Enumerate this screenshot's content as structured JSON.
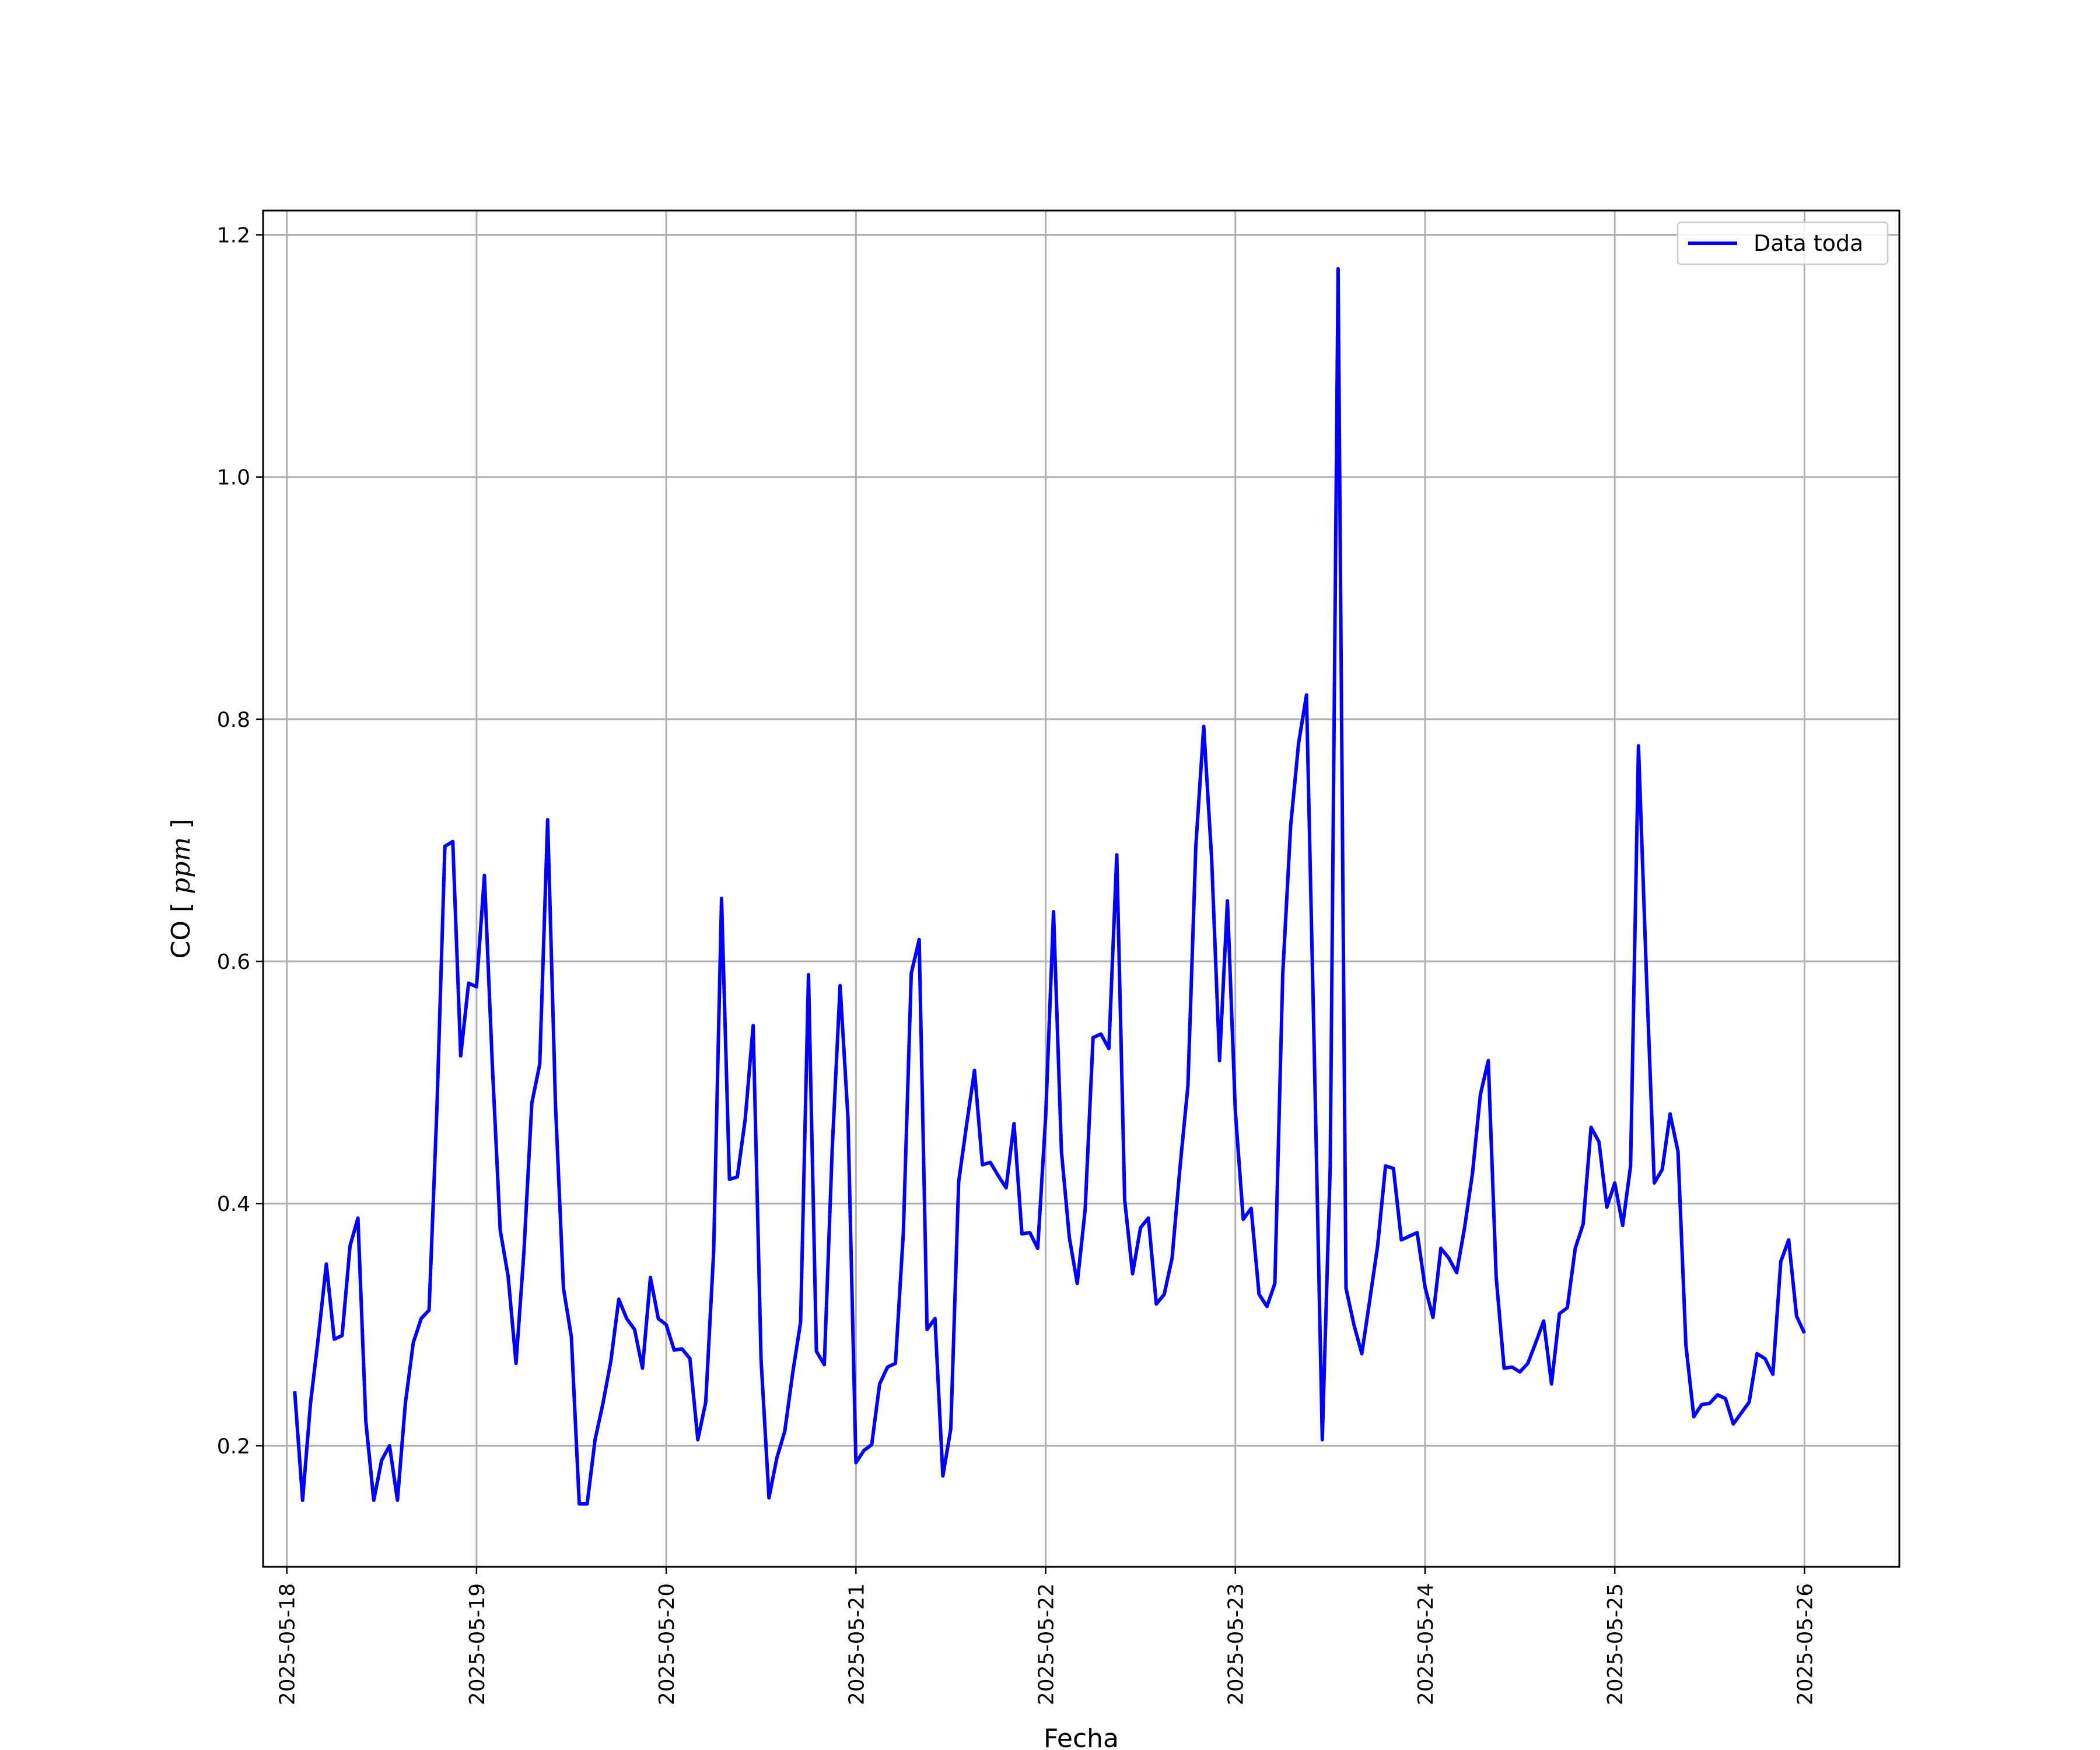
{
  "chart_data": {
    "type": "line",
    "title": "",
    "xlabel": "Fecha",
    "ylabel": "CO",
    "ylabel_unit": "ppm",
    "x_type": "date",
    "xlim": [
      "2025-05-17T21:00",
      "2025-05-26T12:00"
    ],
    "ylim": [
      0.1,
      1.22
    ],
    "xticks": [
      "2025-05-18",
      "2025-05-19",
      "2025-05-20",
      "2025-05-21",
      "2025-05-22",
      "2025-05-23",
      "2025-05-24",
      "2025-05-25",
      "2025-05-26"
    ],
    "yticks": [
      "0.2",
      "0.4",
      "0.6",
      "0.8",
      "1.0",
      "1.2"
    ],
    "grid": true,
    "legend": {
      "position": "top-right",
      "entries": [
        "Data toda"
      ]
    },
    "series": [
      {
        "name": "Data toda",
        "color": "#0000ff",
        "x": [
          "2025-05-18T01:00",
          "2025-05-18T02:00",
          "2025-05-18T03:00",
          "2025-05-18T04:00",
          "2025-05-18T05:00",
          "2025-05-18T06:00",
          "2025-05-18T07:00",
          "2025-05-18T08:00",
          "2025-05-18T09:00",
          "2025-05-18T10:00",
          "2025-05-18T11:00",
          "2025-05-18T12:00",
          "2025-05-18T13:00",
          "2025-05-18T14:00",
          "2025-05-18T15:00",
          "2025-05-18T16:00",
          "2025-05-18T17:00",
          "2025-05-18T18:00",
          "2025-05-18T19:00",
          "2025-05-18T20:00",
          "2025-05-18T21:00",
          "2025-05-18T22:00",
          "2025-05-18T23:00",
          "2025-05-19T00:00",
          "2025-05-19T01:00",
          "2025-05-19T02:00",
          "2025-05-19T03:00",
          "2025-05-19T04:00",
          "2025-05-19T05:00",
          "2025-05-19T06:00",
          "2025-05-19T07:00",
          "2025-05-19T08:00",
          "2025-05-19T09:00",
          "2025-05-19T10:00",
          "2025-05-19T11:00",
          "2025-05-19T12:00",
          "2025-05-19T13:00",
          "2025-05-19T14:00",
          "2025-05-19T15:00",
          "2025-05-19T16:00",
          "2025-05-19T17:00",
          "2025-05-19T18:00",
          "2025-05-19T19:00",
          "2025-05-19T20:00",
          "2025-05-19T21:00",
          "2025-05-19T22:00",
          "2025-05-19T23:00",
          "2025-05-20T00:00",
          "2025-05-20T01:00",
          "2025-05-20T02:00",
          "2025-05-20T03:00",
          "2025-05-20T04:00",
          "2025-05-20T05:00",
          "2025-05-20T06:00",
          "2025-05-20T07:00",
          "2025-05-20T08:00",
          "2025-05-20T09:00",
          "2025-05-20T10:00",
          "2025-05-20T11:00",
          "2025-05-20T12:00",
          "2025-05-20T13:00",
          "2025-05-20T14:00",
          "2025-05-20T15:00",
          "2025-05-20T16:00",
          "2025-05-20T17:00",
          "2025-05-20T18:00",
          "2025-05-20T19:00",
          "2025-05-20T20:00",
          "2025-05-20T21:00",
          "2025-05-20T22:00",
          "2025-05-20T23:00",
          "2025-05-21T00:00",
          "2025-05-21T01:00",
          "2025-05-21T02:00",
          "2025-05-21T03:00",
          "2025-05-21T04:00",
          "2025-05-21T05:00",
          "2025-05-21T06:00",
          "2025-05-21T07:00",
          "2025-05-21T08:00",
          "2025-05-21T09:00",
          "2025-05-21T10:00",
          "2025-05-21T11:00",
          "2025-05-21T12:00",
          "2025-05-21T13:00",
          "2025-05-21T14:00",
          "2025-05-21T15:00",
          "2025-05-21T16:00",
          "2025-05-21T17:00",
          "2025-05-21T18:00",
          "2025-05-21T19:00",
          "2025-05-21T20:00",
          "2025-05-21T21:00",
          "2025-05-21T22:00",
          "2025-05-21T23:00",
          "2025-05-22T00:00",
          "2025-05-22T01:00",
          "2025-05-22T02:00",
          "2025-05-22T03:00",
          "2025-05-22T04:00",
          "2025-05-22T05:00",
          "2025-05-22T06:00",
          "2025-05-22T07:00",
          "2025-05-22T08:00",
          "2025-05-22T09:00",
          "2025-05-22T10:00",
          "2025-05-22T11:00",
          "2025-05-22T12:00",
          "2025-05-22T13:00",
          "2025-05-22T14:00",
          "2025-05-22T15:00",
          "2025-05-22T16:00",
          "2025-05-22T17:00",
          "2025-05-22T18:00",
          "2025-05-22T19:00",
          "2025-05-22T20:00",
          "2025-05-22T21:00",
          "2025-05-22T22:00",
          "2025-05-22T23:00",
          "2025-05-23T00:00",
          "2025-05-23T01:00",
          "2025-05-23T02:00",
          "2025-05-23T03:00",
          "2025-05-23T04:00",
          "2025-05-23T05:00",
          "2025-05-23T06:00",
          "2025-05-23T07:00",
          "2025-05-23T08:00",
          "2025-05-23T09:00",
          "2025-05-23T10:00",
          "2025-05-23T11:00",
          "2025-05-23T12:00",
          "2025-05-23T13:00",
          "2025-05-23T14:00",
          "2025-05-23T15:00",
          "2025-05-23T16:00",
          "2025-05-23T17:00",
          "2025-05-23T18:00",
          "2025-05-23T19:00",
          "2025-05-23T20:00",
          "2025-05-23T21:00",
          "2025-05-23T22:00",
          "2025-05-23T23:00",
          "2025-05-24T00:00",
          "2025-05-24T01:00",
          "2025-05-24T02:00",
          "2025-05-24T03:00",
          "2025-05-24T04:00",
          "2025-05-24T05:00",
          "2025-05-24T06:00",
          "2025-05-24T07:00",
          "2025-05-24T08:00",
          "2025-05-24T09:00",
          "2025-05-24T10:00",
          "2025-05-24T11:00",
          "2025-05-24T12:00",
          "2025-05-24T13:00",
          "2025-05-24T14:00",
          "2025-05-24T15:00",
          "2025-05-24T16:00",
          "2025-05-24T17:00",
          "2025-05-24T18:00",
          "2025-05-24T19:00",
          "2025-05-24T20:00",
          "2025-05-24T21:00",
          "2025-05-24T22:00",
          "2025-05-24T23:00",
          "2025-05-25T00:00",
          "2025-05-25T01:00",
          "2025-05-25T02:00",
          "2025-05-25T03:00",
          "2025-05-25T04:00",
          "2025-05-25T05:00",
          "2025-05-25T06:00",
          "2025-05-25T07:00",
          "2025-05-25T08:00",
          "2025-05-25T09:00",
          "2025-05-25T10:00",
          "2025-05-25T11:00",
          "2025-05-25T12:00",
          "2025-05-25T13:00",
          "2025-05-25T14:00",
          "2025-05-25T15:00",
          "2025-05-25T16:00",
          "2025-05-25T17:00",
          "2025-05-25T18:00",
          "2025-05-25T19:00",
          "2025-05-25T20:00",
          "2025-05-25T21:00",
          "2025-05-25T22:00",
          "2025-05-25T23:00",
          "2025-05-26T00:00"
        ],
        "y": [
          0.245,
          0.155,
          0.235,
          0.29,
          0.35,
          0.288,
          0.291,
          0.365,
          0.388,
          0.22,
          0.155,
          0.188,
          0.2,
          0.155,
          0.235,
          0.285,
          0.305,
          0.312,
          0.48,
          0.695,
          0.699,
          0.522,
          0.582,
          0.579,
          0.671,
          0.515,
          0.378,
          0.34,
          0.268,
          0.36,
          0.483,
          0.515,
          0.717,
          0.48,
          0.33,
          0.29,
          0.152,
          0.152,
          0.205,
          0.235,
          0.27,
          0.321,
          0.305,
          0.296,
          0.264,
          0.339,
          0.305,
          0.3,
          0.279,
          0.28,
          0.272,
          0.205,
          0.236,
          0.36,
          0.652,
          0.42,
          0.422,
          0.47,
          0.547,
          0.271,
          0.157,
          0.19,
          0.212,
          0.26,
          0.302,
          0.589,
          0.278,
          0.267,
          0.445,
          0.58,
          0.47,
          0.186,
          0.196,
          0.201,
          0.251,
          0.265,
          0.268,
          0.376,
          0.59,
          0.618,
          0.296,
          0.305,
          0.175,
          0.214,
          0.418,
          0.465,
          0.51,
          0.432,
          0.434,
          0.423,
          0.413,
          0.466,
          0.375,
          0.376,
          0.363,
          0.471,
          0.641,
          0.443,
          0.372,
          0.334,
          0.395,
          0.537,
          0.54,
          0.528,
          0.688,
          0.403,
          0.342,
          0.38,
          0.388,
          0.317,
          0.325,
          0.355,
          0.43,
          0.497,
          0.695,
          0.794,
          0.685,
          0.518,
          0.65,
          0.476,
          0.387,
          0.396,
          0.325,
          0.315,
          0.334,
          0.59,
          0.712,
          0.78,
          0.82,
          0.52,
          0.205,
          0.43,
          1.172,
          0.33,
          0.3,
          0.276,
          0.32,
          0.365,
          0.431,
          0.429,
          0.37,
          0.373,
          0.376,
          0.331,
          0.306,
          0.363,
          0.355,
          0.343,
          0.38,
          0.425,
          0.49,
          0.518,
          0.339,
          0.264,
          0.265,
          0.261,
          0.268,
          0.285,
          0.303,
          0.251,
          0.309,
          0.314,
          0.363,
          0.383,
          0.463,
          0.451,
          0.397,
          0.417,
          0.382,
          0.431,
          0.778,
          0.59,
          0.417,
          0.428,
          0.474,
          0.443,
          0.283,
          0.224,
          0.234,
          0.235,
          0.242,
          0.239,
          0.218,
          0.227,
          0.236,
          0.276,
          0.272,
          0.259,
          0.352,
          0.37,
          0.307,
          0.293
        ]
      }
    ]
  }
}
